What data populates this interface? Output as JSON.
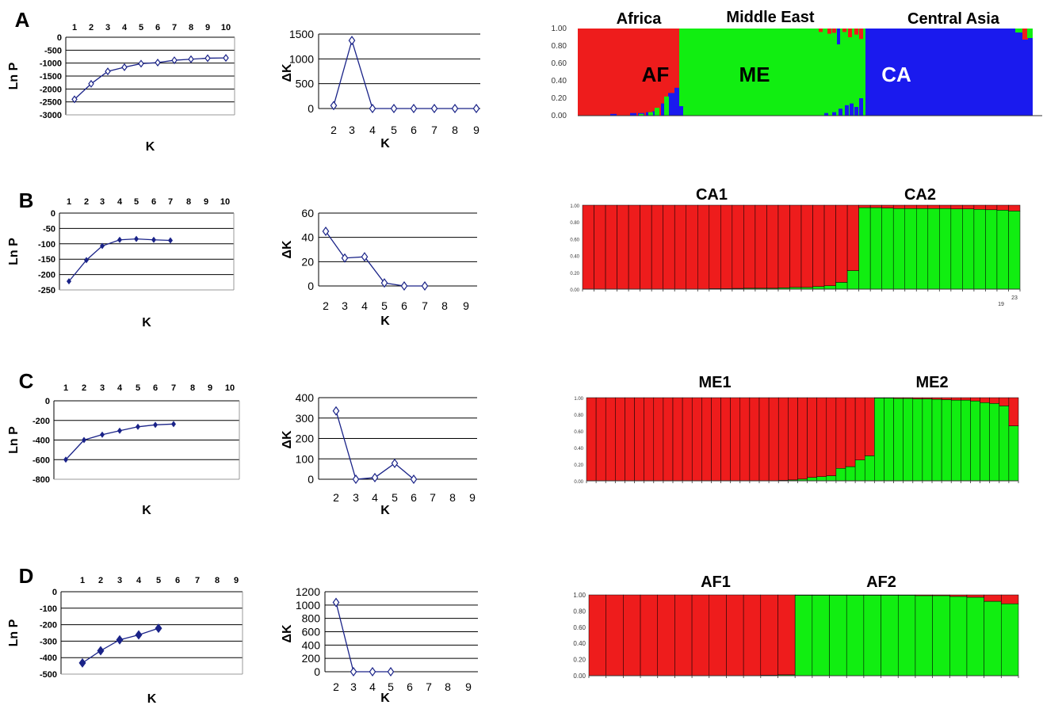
{
  "chart_data": [
    {
      "panel": "A",
      "kind": "lnp",
      "type": "line",
      "title": "",
      "xlabel": "K",
      "ylabel": "Ln P",
      "x": [
        1,
        2,
        3,
        4,
        5,
        6,
        7,
        8,
        9,
        10
      ],
      "values": [
        -2400,
        -1800,
        -1320,
        -1160,
        -1020,
        -980,
        -890,
        -850,
        -810,
        -800
      ],
      "ylim": [
        -3000,
        0
      ],
      "yticks": [
        0,
        -500,
        -1000,
        -1500,
        -2000,
        -2500,
        -3000
      ],
      "yticklabels": [
        "0",
        "-500",
        "-1000",
        "-1500",
        "-2000",
        "-2500",
        "-3000"
      ],
      "marker": "open-diamond",
      "grid": true
    },
    {
      "panel": "A",
      "kind": "dk",
      "type": "line",
      "title": "",
      "xlabel": "K",
      "ylabel": "ΔK",
      "x": [
        2,
        3,
        4,
        5,
        6,
        7,
        8,
        9
      ],
      "values": [
        60,
        1370,
        0,
        0,
        0,
        0,
        0,
        0
      ],
      "ylim": [
        0,
        1500
      ],
      "yticks": [
        0,
        500,
        1000,
        1500
      ],
      "yticklabels": [
        "0",
        "500",
        "1000",
        "1500"
      ],
      "marker": "open-diamond",
      "grid": true
    },
    {
      "panel": "A",
      "kind": "structure",
      "type": "bar",
      "k": 3,
      "groups": [
        "Africa",
        "Middle East",
        "Central Asia"
      ],
      "clusters": [
        "AF",
        "ME",
        "CA"
      ],
      "yticklabels": [
        "1.00",
        "0.80",
        "0.60",
        "0.40",
        "0.20",
        "0.00"
      ]
    },
    {
      "panel": "B",
      "kind": "lnp",
      "type": "line",
      "title": "",
      "xlabel": "K",
      "ylabel": "Ln P",
      "x": [
        1,
        2,
        3,
        4,
        5,
        6,
        7
      ],
      "values": [
        -222,
        -153,
        -107,
        -87,
        -84,
        -87,
        -89
      ],
      "ylim": [
        -250,
        0
      ],
      "yticks": [
        0,
        -50,
        -100,
        -150,
        -200,
        -250
      ],
      "yticklabels": [
        "0",
        "-50",
        "-100",
        "-150",
        "-200",
        "-250"
      ],
      "marker": "filled-diamond",
      "grid": true
    },
    {
      "panel": "B",
      "kind": "dk",
      "type": "line",
      "title": "",
      "xlabel": "K",
      "ylabel": "ΔK",
      "x": [
        2,
        3,
        4,
        5,
        6,
        7
      ],
      "values": [
        45,
        23,
        24,
        2.5,
        0,
        0
      ],
      "ylim": [
        0,
        60
      ],
      "yticks": [
        0,
        20,
        40,
        60
      ],
      "yticklabels": [
        "0",
        "20",
        "40",
        "60"
      ],
      "marker": "open-diamond",
      "grid": true
    },
    {
      "panel": "B",
      "kind": "structure",
      "type": "bar",
      "k": 2,
      "groups": [
        "CA1",
        "CA2"
      ],
      "extra_labels": [
        "19",
        "23"
      ],
      "yticklabels": [
        "1.00",
        "0.80",
        "0.60",
        "0.40",
        "0.20",
        "0.00"
      ]
    },
    {
      "panel": "C",
      "kind": "lnp",
      "type": "line",
      "title": "",
      "xlabel": "K",
      "ylabel": "Ln P",
      "x": [
        1,
        2,
        3,
        4,
        5,
        6,
        7
      ],
      "values": [
        -600,
        -400,
        -345,
        -305,
        -265,
        -245,
        -237
      ],
      "ylim": [
        -800,
        0
      ],
      "yticks": [
        0,
        -200,
        -400,
        -600,
        -800
      ],
      "yticklabels": [
        "0",
        "-200",
        "-400",
        "-600",
        "-800"
      ],
      "marker": "filled-diamond",
      "grid": true
    },
    {
      "panel": "C",
      "kind": "dk",
      "type": "line",
      "title": "",
      "xlabel": "K",
      "ylabel": "ΔK",
      "x": [
        2,
        3,
        4,
        5,
        6
      ],
      "values": [
        335,
        0,
        8,
        78,
        0
      ],
      "ylim": [
        0,
        400
      ],
      "yticks": [
        0,
        100,
        200,
        300,
        400
      ],
      "yticklabels": [
        "0",
        "100",
        "200",
        "300",
        "400"
      ],
      "marker": "open-diamond",
      "grid": true
    },
    {
      "panel": "C",
      "kind": "structure",
      "type": "bar",
      "k": 2,
      "groups": [
        "ME1",
        "ME2"
      ],
      "yticklabels": [
        "1.00",
        "0.80",
        "0.60",
        "0.40",
        "0.20",
        "0.00"
      ]
    },
    {
      "panel": "D",
      "kind": "lnp",
      "type": "line",
      "title": "",
      "xlabel": "K",
      "ylabel": "Ln P",
      "x": [
        1,
        2,
        3,
        4,
        5
      ],
      "values": [
        -432,
        -358,
        -292,
        -262,
        -222
      ],
      "ylim": [
        -500,
        0
      ],
      "yticks": [
        0,
        -100,
        -200,
        -300,
        -400,
        -500
      ],
      "yticklabels": [
        "0",
        "-100",
        "-200",
        "-300",
        "-400",
        "-500"
      ],
      "marker": "filled-diamond-large",
      "grid": true
    },
    {
      "panel": "D",
      "kind": "dk",
      "type": "line",
      "title": "",
      "xlabel": "K",
      "ylabel": "ΔK",
      "x": [
        2,
        3,
        4,
        5
      ],
      "values": [
        1040,
        0,
        0,
        0
      ],
      "ylim": [
        0,
        1200
      ],
      "yticks": [
        0,
        200,
        400,
        600,
        800,
        1000,
        1200
      ],
      "yticklabels": [
        "0",
        "200",
        "400",
        "600",
        "800",
        "1000",
        "1200"
      ],
      "marker": "open-diamond",
      "grid": true
    },
    {
      "panel": "D",
      "kind": "structure",
      "type": "bar",
      "k": 2,
      "groups": [
        "AF1",
        "AF2"
      ],
      "yticklabels": [
        "1.00",
        "0.80",
        "0.60",
        "0.40",
        "0.20",
        "0.00"
      ]
    }
  ],
  "colors": {
    "cluster1": "#ee1c1c",
    "cluster2": "#11ee11",
    "cluster3": "#1a1aee",
    "line": "#1a2388"
  }
}
